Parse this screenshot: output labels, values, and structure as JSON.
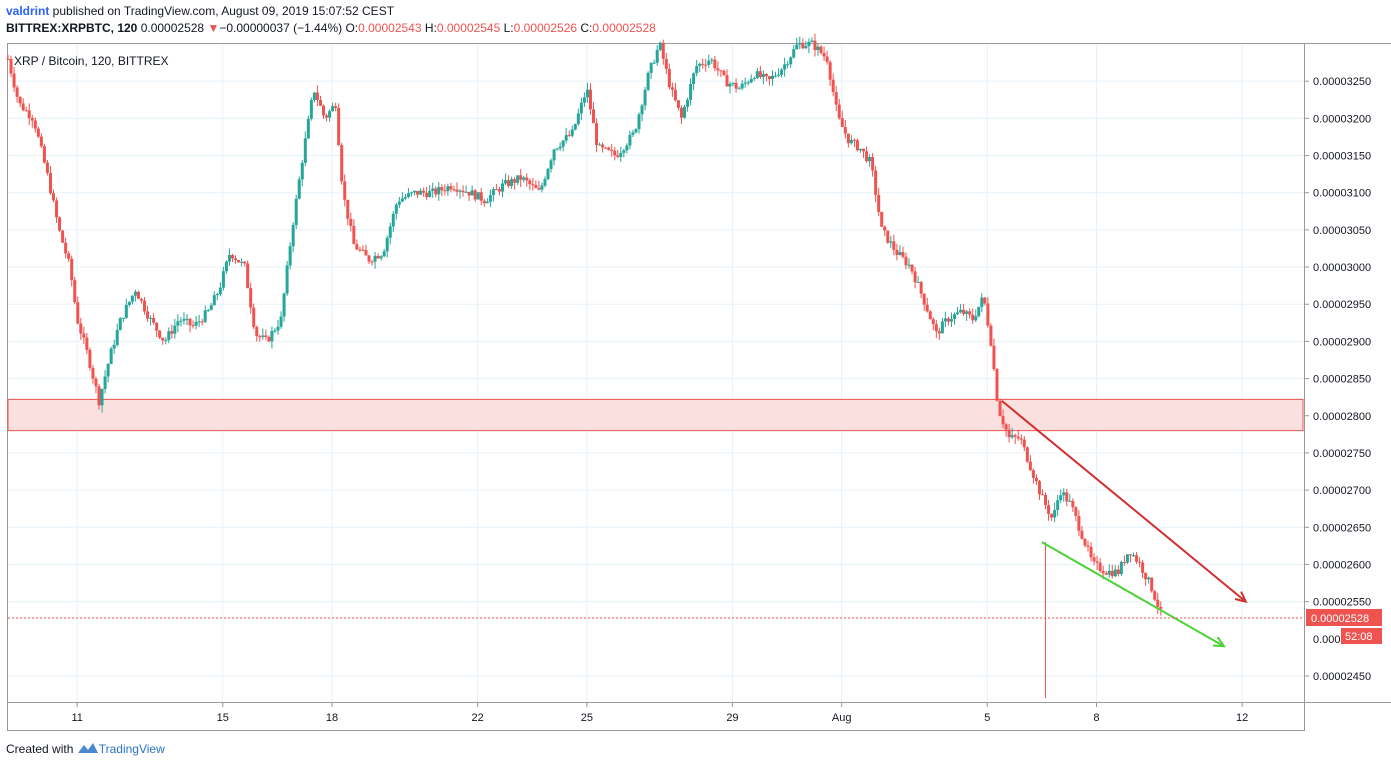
{
  "header": {
    "user": "valdrint",
    "published": " published on TradingView.com, August 09, 2019 15:07:52 CEST",
    "symbol": "BITTREX:XRPBTC, 120",
    "last": "0.00002528",
    "change_arrow": "▼",
    "change": "−0.00000037 (−1.44%)",
    "o_label": "O:",
    "o": "0.00002543",
    "h_label": "H:",
    "h": "0.00002545",
    "l_label": "L:",
    "l": "0.00002526",
    "c_label": "C:",
    "c": "0.00002528"
  },
  "legend": "XRP / Bitcoin, 120, BITTREX",
  "footer": {
    "created": "Created with",
    "brand": "TradingView"
  },
  "colors": {
    "up": "#26a69a",
    "down": "#ef5350",
    "grid": "#e6f2f9",
    "zone_fill": "#fbe0e0",
    "zone_border": "#ef5350",
    "trend_red": "#d32f2f",
    "trend_green": "#4cd137"
  },
  "chart_data": {
    "type": "candlestick",
    "title": "XRP / Bitcoin, 120, BITTREX",
    "ylim": [
      2.415e-05,
      3.3e-05
    ],
    "yticks": [
      3.25e-05,
      3.2e-05,
      3.15e-05,
      3.1e-05,
      3.05e-05,
      3e-05,
      2.95e-05,
      2.9e-05,
      2.85e-05,
      2.8e-05,
      2.75e-05,
      2.7e-05,
      2.65e-05,
      2.6e-05,
      2.55e-05,
      2.45e-05
    ],
    "ytick_labels": [
      "0.00003250",
      "0.00003200",
      "0.00003150",
      "0.00003100",
      "0.00003050",
      "0.00003000",
      "0.00002950",
      "0.00002900",
      "0.00002850",
      "0.00002800",
      "0.00002750",
      "0.00002700",
      "0.00002650",
      "0.00002600",
      "0.00002550",
      "0.00002450"
    ],
    "x_ticks": [
      {
        "label": "11",
        "day": 11
      },
      {
        "label": "15",
        "day": 15
      },
      {
        "label": "18",
        "day": 18
      },
      {
        "label": "22",
        "day": 22
      },
      {
        "label": "25",
        "day": 25
      },
      {
        "label": "29",
        "day": 29
      },
      {
        "label": "Aug",
        "day": 32
      },
      {
        "label": "5",
        "day": 36
      },
      {
        "label": "8",
        "day": 39
      },
      {
        "label": "12",
        "day": 43
      }
    ],
    "x_range_days": [
      9.1,
      44.7
    ],
    "series_path": [
      [
        9.1,
        3.28e-05
      ],
      [
        9.4,
        3.22e-05
      ],
      [
        9.8,
        3.2e-05
      ],
      [
        10.2,
        3.12e-05
      ],
      [
        10.5,
        3.05e-05
      ],
      [
        10.8,
        3e-05
      ],
      [
        11.0,
        2.93e-05
      ],
      [
        11.3,
        2.88e-05
      ],
      [
        11.6,
        2.82e-05
      ],
      [
        11.9,
        2.88e-05
      ],
      [
        12.2,
        2.93e-05
      ],
      [
        12.6,
        2.97e-05
      ],
      [
        13.0,
        2.93e-05
      ],
      [
        13.4,
        2.9e-05
      ],
      [
        13.8,
        2.93e-05
      ],
      [
        14.2,
        2.92e-05
      ],
      [
        14.6,
        2.94e-05
      ],
      [
        14.9,
        2.97e-05
      ],
      [
        15.2,
        3.02e-05
      ],
      [
        15.6,
        3e-05
      ],
      [
        15.9,
        2.91e-05
      ],
      [
        16.2,
        2.9e-05
      ],
      [
        16.6,
        2.93e-05
      ],
      [
        16.9,
        3.05e-05
      ],
      [
        17.2,
        3.15e-05
      ],
      [
        17.5,
        3.24e-05
      ],
      [
        17.8,
        3.2e-05
      ],
      [
        18.1,
        3.22e-05
      ],
      [
        18.3,
        3.1e-05
      ],
      [
        18.6,
        3.03e-05
      ],
      [
        19.0,
        3.01e-05
      ],
      [
        19.4,
        3.02e-05
      ],
      [
        19.8,
        3.09e-05
      ],
      [
        20.3,
        3.1e-05
      ],
      [
        20.8,
        3.1e-05
      ],
      [
        21.3,
        3.11e-05
      ],
      [
        21.8,
        3.1e-05
      ],
      [
        22.2,
        3.09e-05
      ],
      [
        22.7,
        3.11e-05
      ],
      [
        23.2,
        3.12e-05
      ],
      [
        23.7,
        3.1e-05
      ],
      [
        24.1,
        3.16e-05
      ],
      [
        24.6,
        3.18e-05
      ],
      [
        25.0,
        3.24e-05
      ],
      [
        25.3,
        3.16e-05
      ],
      [
        25.8,
        3.15e-05
      ],
      [
        26.3,
        3.18e-05
      ],
      [
        26.7,
        3.26e-05
      ],
      [
        27.0,
        3.3e-05
      ],
      [
        27.3,
        3.24e-05
      ],
      [
        27.6,
        3.2e-05
      ],
      [
        28.0,
        3.27e-05
      ],
      [
        28.4,
        3.28e-05
      ],
      [
        28.8,
        3.25e-05
      ],
      [
        29.2,
        3.24e-05
      ],
      [
        29.6,
        3.26e-05
      ],
      [
        30.0,
        3.25e-05
      ],
      [
        30.4,
        3.27e-05
      ],
      [
        30.8,
        3.3e-05
      ],
      [
        31.2,
        3.3e-05
      ],
      [
        31.6,
        3.28e-05
      ],
      [
        31.9,
        3.2e-05
      ],
      [
        32.2,
        3.17e-05
      ],
      [
        32.5,
        3.16e-05
      ],
      [
        32.8,
        3.14e-05
      ],
      [
        33.1,
        3.05e-05
      ],
      [
        33.5,
        3.02e-05
      ],
      [
        33.9,
        3e-05
      ],
      [
        34.3,
        2.95e-05
      ],
      [
        34.6,
        2.91e-05
      ],
      [
        34.9,
        2.93e-05
      ],
      [
        35.3,
        2.94e-05
      ],
      [
        35.6,
        2.93e-05
      ],
      [
        35.9,
        2.96e-05
      ],
      [
        36.1,
        2.9e-05
      ],
      [
        36.3,
        2.81e-05
      ],
      [
        36.6,
        2.77e-05
      ],
      [
        36.9,
        2.77e-05
      ],
      [
        37.2,
        2.73e-05
      ],
      [
        37.5,
        2.69e-05
      ],
      [
        37.8,
        2.66e-05
      ],
      [
        38.0,
        2.7e-05
      ],
      [
        38.3,
        2.68e-05
      ],
      [
        38.6,
        2.64e-05
      ],
      [
        38.9,
        2.6e-05
      ],
      [
        39.3,
        2.59e-05
      ],
      [
        39.6,
        2.59e-05
      ],
      [
        39.9,
        2.62e-05
      ],
      [
        40.2,
        2.6e-05
      ],
      [
        40.5,
        2.57e-05
      ],
      [
        40.8,
        2.53e-05
      ]
    ],
    "support_zone": [
      2.78e-05,
      2.822e-05
    ],
    "last_price": 2.528e-05,
    "last_price_label": "0.00002528",
    "countdown_label": "52:08",
    "hidden_tick_label": "0.000",
    "trend_red": [
      [
        36.4,
        2.82e-05
      ],
      [
        43.1,
        2.55e-05
      ]
    ],
    "trend_green": [
      [
        37.5,
        2.63e-05
      ],
      [
        42.5,
        2.49e-05
      ]
    ],
    "spike": [
      [
        37.6,
        2.63e-05
      ],
      [
        37.6,
        2.42e-05
      ]
    ]
  }
}
